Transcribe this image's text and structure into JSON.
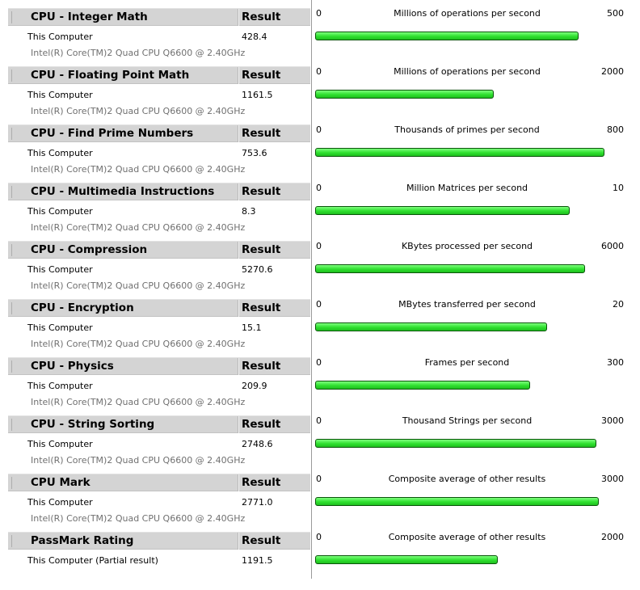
{
  "results": [
    {
      "title": "CPU - Integer Math",
      "result_label": "Result",
      "computer": "This Computer",
      "cpu": "Intel(R) Core(TM)2 Quad CPU Q6600 @ 2.40GHz",
      "value": "428.4",
      "unit": "Millions of operations per second",
      "scale_min": "0",
      "scale_max": "500",
      "fraction": 0.8568,
      "icon": "cpu-chip-icon"
    },
    {
      "title": "CPU - Floating Point Math",
      "result_label": "Result",
      "computer": "This Computer",
      "cpu": "Intel(R) Core(TM)2 Quad CPU Q6600 @ 2.40GHz",
      "value": "1161.5",
      "unit": "Millions of operations per second",
      "scale_min": "0",
      "scale_max": "2000",
      "fraction": 0.58075,
      "icon": "cpu-chip-icon"
    },
    {
      "title": "CPU - Find Prime Numbers",
      "result_label": "Result",
      "computer": "This Computer",
      "cpu": "Intel(R) Core(TM)2 Quad CPU Q6600 @ 2.40GHz",
      "value": "753.6",
      "unit": "Thousands of primes per second",
      "scale_min": "0",
      "scale_max": "800",
      "fraction": 0.942,
      "icon": "cpu-chip-icon"
    },
    {
      "title": "CPU - Multimedia Instructions",
      "result_label": "Result",
      "computer": "This Computer",
      "cpu": "Intel(R) Core(TM)2 Quad CPU Q6600 @ 2.40GHz",
      "value": "8.3",
      "unit": "Million Matrices per second",
      "scale_min": "0",
      "scale_max": "10",
      "fraction": 0.83,
      "icon": "cpu-chip-icon"
    },
    {
      "title": "CPU - Compression",
      "result_label": "Result",
      "computer": "This Computer",
      "cpu": "Intel(R) Core(TM)2 Quad CPU Q6600 @ 2.40GHz",
      "value": "5270.6",
      "unit": "KBytes processed per second",
      "scale_min": "0",
      "scale_max": "6000",
      "fraction": 0.8784,
      "icon": "cpu-chip-icon"
    },
    {
      "title": "CPU - Encryption",
      "result_label": "Result",
      "computer": "This Computer",
      "cpu": "Intel(R) Core(TM)2 Quad CPU Q6600 @ 2.40GHz",
      "value": "15.1",
      "unit": "MBytes transferred per second",
      "scale_min": "0",
      "scale_max": "20",
      "fraction": 0.755,
      "icon": "cpu-chip-icon"
    },
    {
      "title": "CPU - Physics",
      "result_label": "Result",
      "computer": "This Computer",
      "cpu": "Intel(R) Core(TM)2 Quad CPU Q6600 @ 2.40GHz",
      "value": "209.9",
      "unit": "Frames per second",
      "scale_min": "0",
      "scale_max": "300",
      "fraction": 0.6997,
      "icon": "cpu-chip-icon"
    },
    {
      "title": "CPU - String Sorting",
      "result_label": "Result",
      "computer": "This Computer",
      "cpu": "Intel(R) Core(TM)2 Quad CPU Q6600 @ 2.40GHz",
      "value": "2748.6",
      "unit": "Thousand Strings per second",
      "scale_min": "0",
      "scale_max": "3000",
      "fraction": 0.9162,
      "icon": "cpu-chip-icon"
    },
    {
      "title": "CPU Mark",
      "result_label": "Result",
      "computer": "This Computer",
      "cpu": "Intel(R) Core(TM)2 Quad CPU Q6600 @ 2.40GHz",
      "value": "2771.0",
      "unit": "Composite average of other results",
      "scale_min": "0",
      "scale_max": "3000",
      "fraction": 0.9237,
      "icon": "cpu-mark-icon"
    },
    {
      "title": "PassMark Rating",
      "result_label": "Result",
      "computer": "This Computer (Partial result)",
      "cpu": "",
      "value": "1191.5",
      "unit": "Composite average of other results",
      "scale_min": "0",
      "scale_max": "2000",
      "fraction": 0.59575,
      "icon": "passmark-rating-icon"
    }
  ],
  "colors": {
    "bar_fill": "#2fe02f",
    "bar_border": "#0a550a",
    "header_bg": "#d4d4d4",
    "cpu_text": "#707070"
  }
}
